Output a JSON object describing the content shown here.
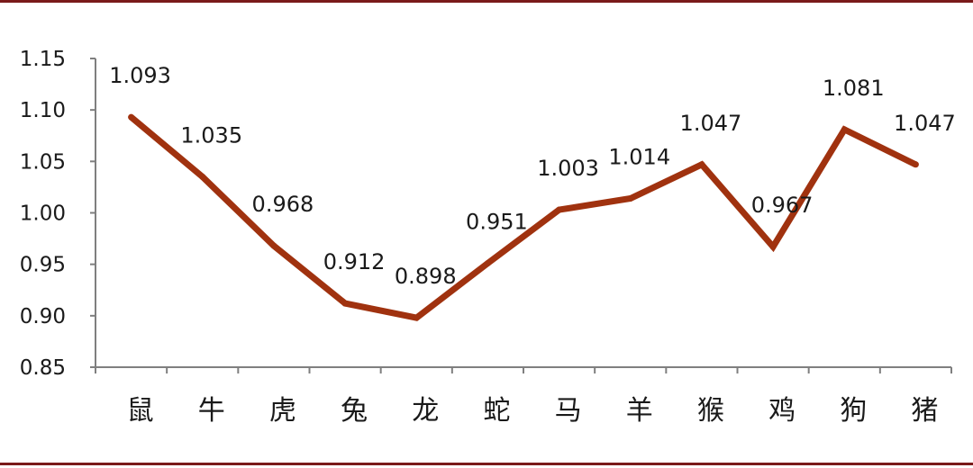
{
  "chart_data": {
    "type": "line",
    "categories": [
      "鼠",
      "牛",
      "虎",
      "兔",
      "龙",
      "蛇",
      "马",
      "羊",
      "猴",
      "鸡",
      "狗",
      "猪"
    ],
    "values": [
      1.093,
      1.035,
      0.968,
      0.912,
      0.898,
      0.951,
      1.003,
      1.014,
      1.047,
      0.967,
      1.081,
      1.047
    ],
    "data_labels": [
      "1.093",
      "1.035",
      "0.968",
      "0.912",
      "0.898",
      "0.951",
      "1.003",
      "1.014",
      "1.047",
      "0.967",
      "1.081",
      "1.047"
    ],
    "yticks": [
      "0.85",
      "0.90",
      "0.95",
      "1.00",
      "1.05",
      "1.10",
      "1.15"
    ],
    "ylim": [
      0.85,
      1.15
    ],
    "line_color": "#a0320f",
    "frame_color": "#7a1a1a",
    "grid": false,
    "legend": "none"
  }
}
